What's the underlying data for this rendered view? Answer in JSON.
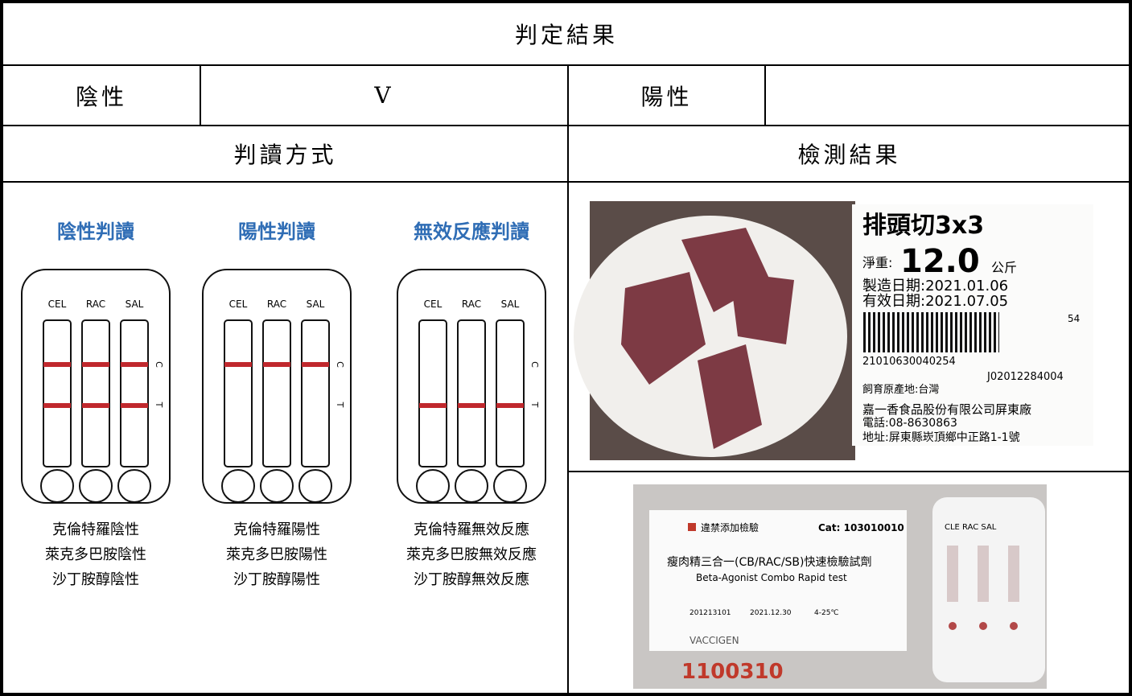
{
  "header": {
    "title": "判定結果"
  },
  "result": {
    "negative_label": "陰性",
    "negative_mark": "V",
    "positive_label": "陽性"
  },
  "sections": {
    "method": "判讀方式",
    "result": "檢測結果"
  },
  "diagram": {
    "strip_labels": [
      "CEL",
      "RAC",
      "SAL"
    ],
    "c_label": "C",
    "t_label": "T",
    "panels": [
      {
        "title": "陰性判讀",
        "captions": [
          "克倫特羅陰性",
          "萊克多巴胺陰性",
          "沙丁胺醇陰性"
        ]
      },
      {
        "title": "陽性判讀",
        "captions": [
          "克倫特羅陽性",
          "萊克多巴胺陽性",
          "沙丁胺醇陽性"
        ]
      },
      {
        "title": "無效反應判讀",
        "captions": [
          "克倫特羅無效反應",
          "萊克多巴胺無效反應",
          "沙丁胺醇無效反應"
        ]
      }
    ]
  },
  "photo_label": {
    "product": "排頭切3x3",
    "weight_label": "淨重:",
    "weight": "12.0",
    "weight_unit": "公斤",
    "made": "製造日期:2021.01.06",
    "expiry": "有效日期:2021.07.05",
    "code_small": "54",
    "barcode": "21010630040254",
    "batch": "J02012284004",
    "origin": "飼育原產地:台灣",
    "company": "嘉一香食品股份有限公司屏東廠",
    "phone": "電話:08-8630863",
    "address": "地址:屏東縣崁頂鄉中正路1-1號"
  },
  "photo_kit": {
    "tag": "違禁添加檢驗",
    "cat": "Cat: 103010010",
    "name": "瘦肉精三合一(CB/RAC/SB)快速檢驗試劑",
    "name_en": "Beta-Agonist Combo Rapid test",
    "lot": "201213101",
    "exp": "2021.12.30",
    "temp": "4-25℃",
    "brand": "VACCIGEN",
    "strips": "CLE  RAC  SAL",
    "handwriting": "1100310"
  }
}
